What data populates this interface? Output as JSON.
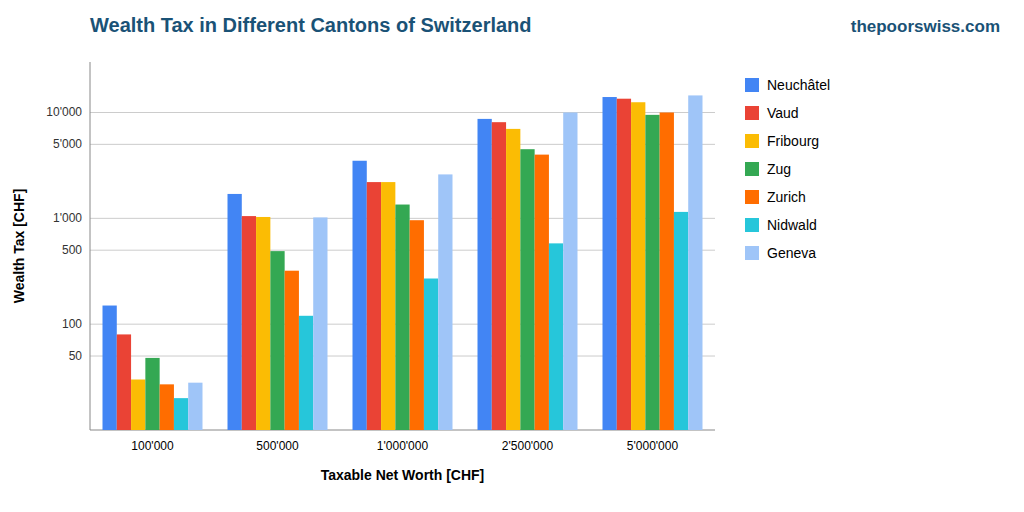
{
  "chart_data": {
    "type": "bar",
    "title": "Wealth Tax in Different Cantons of Switzerland",
    "annotations": [
      "thepoorswiss.com"
    ],
    "x_label": "Taxable Net Worth [CHF]",
    "y_label": "Wealth Tax [CHF]",
    "categories": [
      "100'000",
      "500'000",
      "1'000'000",
      "2'500'000",
      "5'000'000"
    ],
    "series": [
      {
        "name": "Neuchâtel",
        "color": "#4285F4",
        "values": [
          150,
          1700,
          3500,
          8700,
          14000
        ]
      },
      {
        "name": "Vaud",
        "color": "#EA4335",
        "values": [
          80,
          1050,
          2200,
          8100,
          13500
        ]
      },
      {
        "name": "Fribourg",
        "color": "#FBBC04",
        "values": [
          30,
          1030,
          2200,
          7000,
          12500
        ]
      },
      {
        "name": "Zug",
        "color": "#34A853",
        "values": [
          48,
          490,
          1350,
          4500,
          9500
        ]
      },
      {
        "name": "Zurich",
        "color": "#FF6D00",
        "values": [
          27,
          320,
          960,
          4000,
          10000
        ]
      },
      {
        "name": "Nidwald",
        "color": "#26C6DA",
        "values": [
          20,
          120,
          270,
          580,
          1150
        ]
      },
      {
        "name": "Geneva",
        "color": "#9FC5F8",
        "values": [
          28,
          1020,
          2600,
          10000,
          14500
        ]
      }
    ],
    "log": "y",
    "ylim": [
      10,
      30000
    ],
    "yticks": [
      50,
      100,
      500,
      {
        "value": 1000,
        "label": "1'000"
      },
      {
        "value": 5000,
        "label": "5'000"
      },
      {
        "value": 10000,
        "label": "10'000"
      }
    ],
    "grid": true,
    "legend": "right"
  }
}
